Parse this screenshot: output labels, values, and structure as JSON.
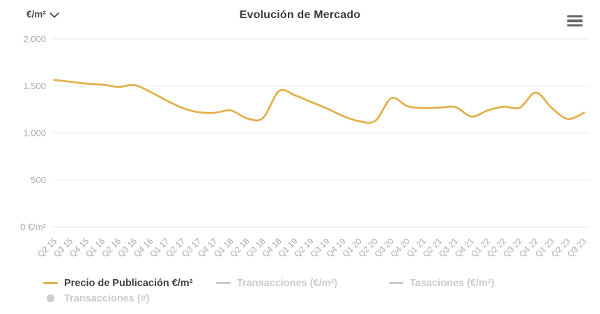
{
  "header": {
    "unit_selector_label": "€/m²",
    "title": "Evolución de Mercado"
  },
  "colors": {
    "line": "#e2b04c",
    "grid": "#ededf1",
    "axis_label": "#a4a9b5",
    "title": "#3a3a40",
    "legend_active": "#3f4043",
    "legend_inactive": "#cbcbce",
    "menu_icon": "#65656b"
  },
  "chart_data": {
    "type": "line",
    "title": "Evolución de Mercado",
    "xlabel": "",
    "ylabel": "€/m²",
    "ylim": [
      0,
      2000
    ],
    "grid": true,
    "legend_position": "bottom",
    "categories": [
      "Q2 15",
      "Q3 15",
      "Q4 15",
      "Q1 16",
      "Q2 16",
      "Q3 16",
      "Q4 16",
      "Q1 17",
      "Q2 17",
      "Q3 17",
      "Q4 17",
      "Q1 18",
      "Q2 18",
      "Q3 18",
      "Q4 18",
      "Q1 19",
      "Q2 19",
      "Q3 19",
      "Q4 19",
      "Q1 20",
      "Q2 20",
      "Q3 20",
      "Q4 20",
      "Q1 21",
      "Q2 21",
      "Q3 21",
      "Q4 21",
      "Q1 22",
      "Q2 22",
      "Q3 22",
      "Q4 22",
      "Q1 23",
      "Q2 23",
      "Q3 23"
    ],
    "yticks": [
      {
        "value": 2000,
        "label": "2.000"
      },
      {
        "value": 1500,
        "label": "1.500"
      },
      {
        "value": 1000,
        "label": "1.000"
      },
      {
        "value": 500,
        "label": "500"
      },
      {
        "value": 0,
        "label": "0 €/m²"
      }
    ],
    "series": [
      {
        "name": "Precio de Publicación €/m²",
        "color": "#e2b04c",
        "visible": true,
        "marker": "line",
        "values": [
          1565,
          1545,
          1525,
          1515,
          1490,
          1510,
          1435,
          1345,
          1265,
          1220,
          1215,
          1240,
          1155,
          1160,
          1445,
          1400,
          1330,
          1260,
          1180,
          1125,
          1130,
          1370,
          1285,
          1265,
          1270,
          1275,
          1175,
          1240,
          1280,
          1270,
          1430,
          1265,
          1150,
          1215
        ]
      },
      {
        "name": "Transacciones (€/m²)",
        "visible": false,
        "marker": "line"
      },
      {
        "name": "Tasaciones (€/m²)",
        "visible": false,
        "marker": "line"
      },
      {
        "name": "Transacciones (#)",
        "visible": false,
        "marker": "circle"
      }
    ]
  }
}
